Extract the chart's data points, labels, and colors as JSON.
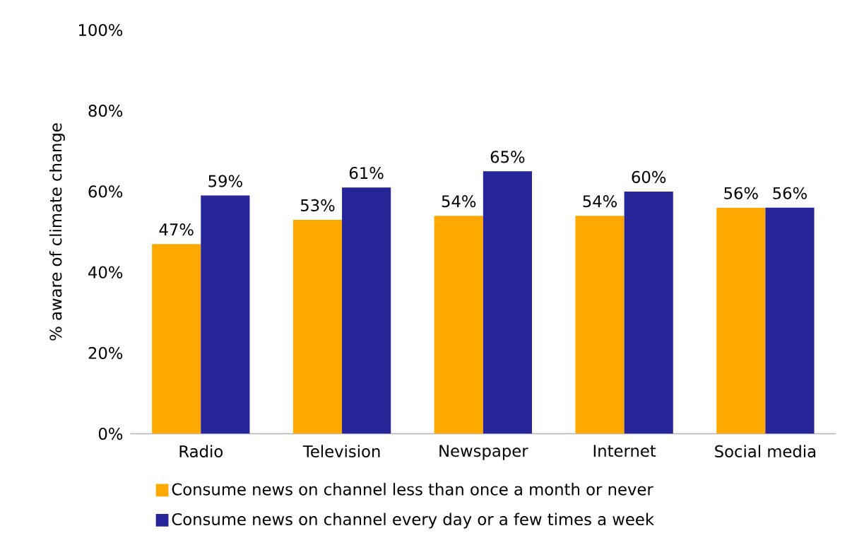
{
  "chart_data": {
    "type": "bar",
    "ylabel": "% aware of climate change",
    "categories": [
      "Radio",
      "Television",
      "Newspaper",
      "Internet",
      "Social media"
    ],
    "series": [
      {
        "name": "Consume news on channel less than once a month or never",
        "color": "#ffa800",
        "values": [
          47,
          53,
          54,
          54,
          56
        ],
        "value_labels": [
          "47%",
          "53%",
          "54%",
          "54%",
          "56%"
        ]
      },
      {
        "name": "Consume news on channel every day or a few times a week",
        "color": "#27259a",
        "values": [
          59,
          61,
          65,
          60,
          56
        ],
        "value_labels": [
          "59%",
          "61%",
          "65%",
          "60%",
          "56%"
        ]
      }
    ],
    "ylim": [
      0,
      100
    ],
    "yticks": [
      {
        "value": 0,
        "label": "0%"
      },
      {
        "value": 20,
        "label": "20%"
      },
      {
        "value": 40,
        "label": "40%"
      },
      {
        "value": 60,
        "label": "60%"
      },
      {
        "value": 80,
        "label": "80%"
      },
      {
        "value": 100,
        "label": "100%"
      }
    ],
    "grid": false,
    "legend": "bottom"
  }
}
